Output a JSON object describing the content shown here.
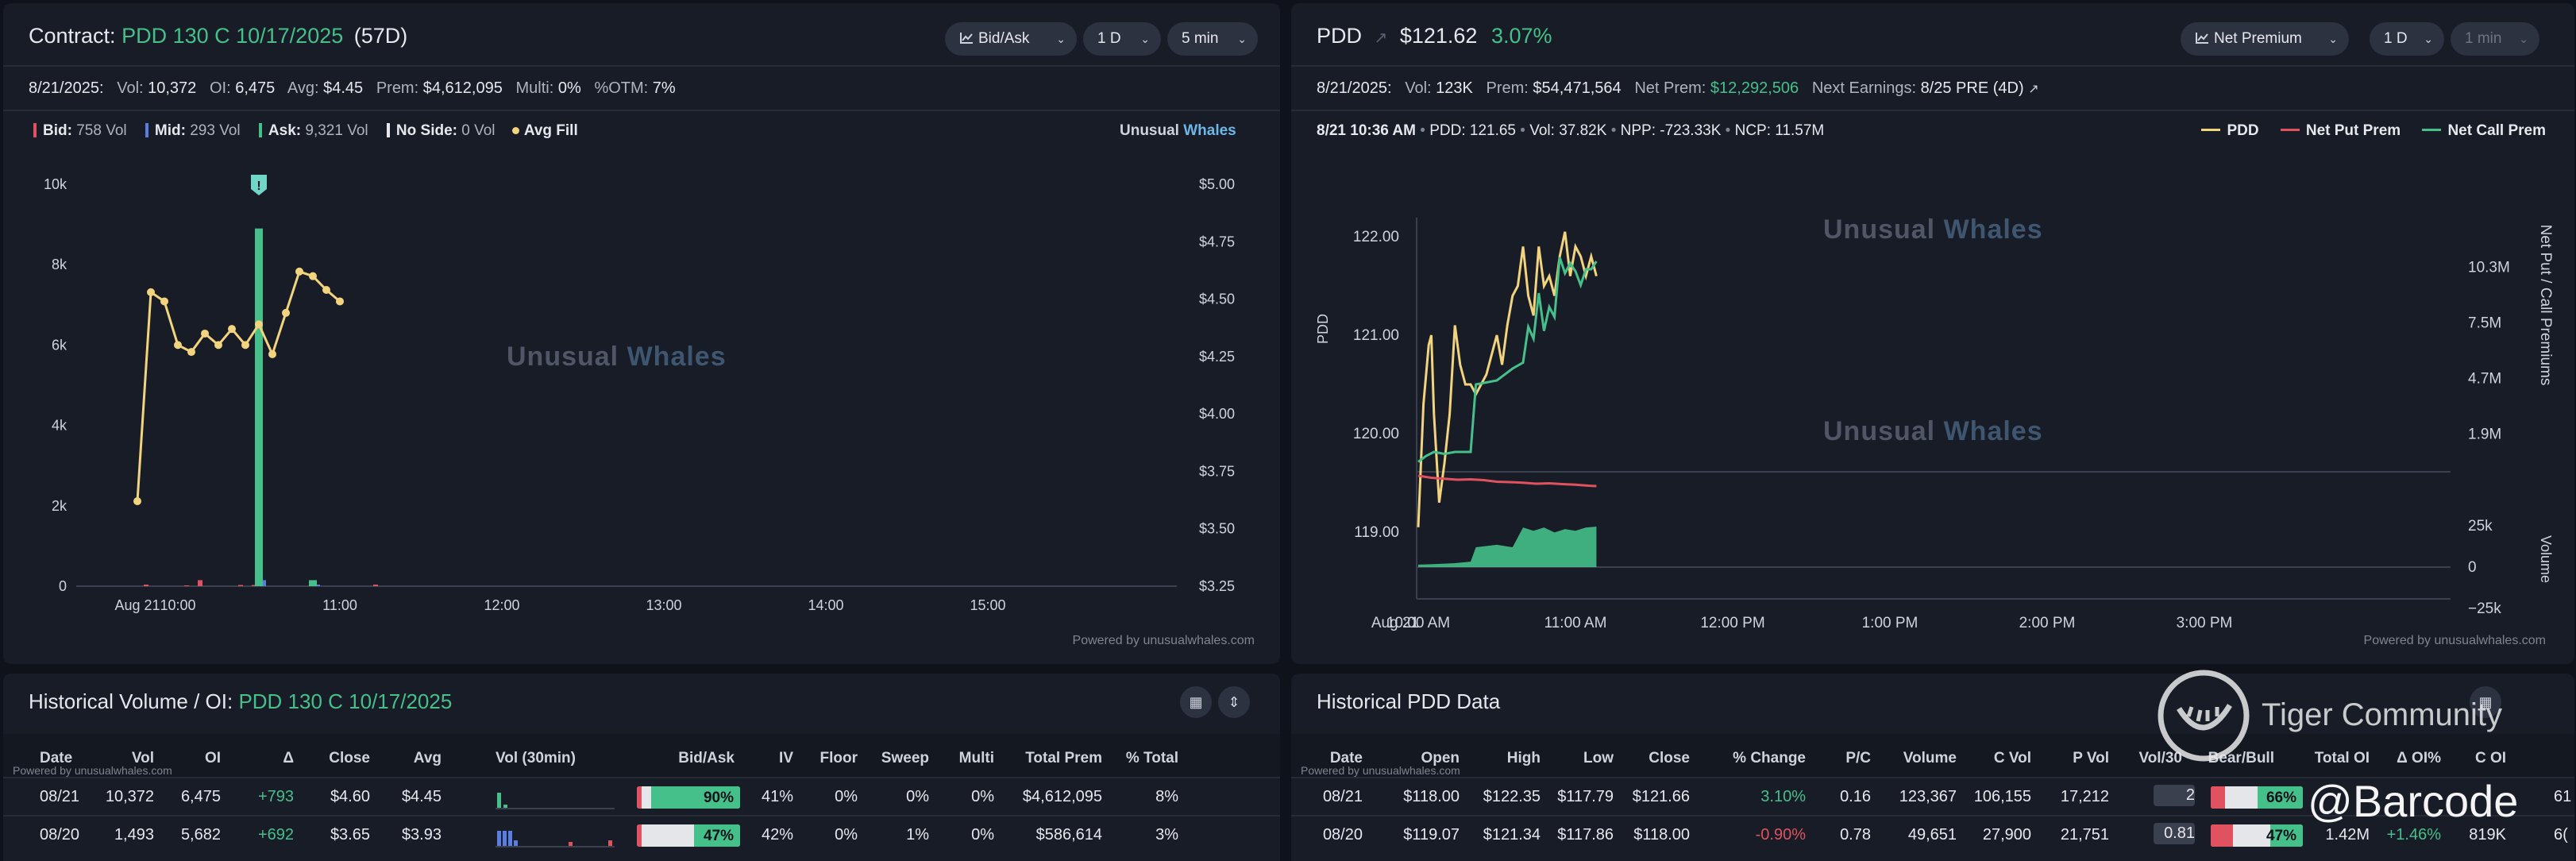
{
  "left_panel": {
    "title_prefix": "Contract:",
    "contract": "PDD 130 C 10/17/2025",
    "dte": "(57D)",
    "buttons": [
      "Bid/Ask",
      "1 D",
      "5 min"
    ],
    "stats": {
      "date": "8/21/2025:",
      "vol_label": "Vol:",
      "vol": "10,372",
      "oi_label": "OI:",
      "oi": "6,475",
      "avg_label": "Avg:",
      "avg": "$4.45",
      "prem_label": "Prem:",
      "prem": "$4,612,095",
      "multi_label": "Multi:",
      "multi": "0%",
      "otm_label": "%OTM:",
      "otm": "7%"
    },
    "legend": {
      "bid": "Bid:",
      "bid_vol": "758 Vol",
      "mid": "Mid:",
      "mid_vol": "293 Vol",
      "ask": "Ask:",
      "ask_vol": "9,321 Vol",
      "noside": "No Side:",
      "noside_vol": "0 Vol",
      "avgfill": "Avg Fill"
    },
    "brand_a": "Unusual",
    "brand_b": "Whales",
    "watermark_a": "Unusual",
    "watermark_b": "Whales",
    "powered": "Powered by unusualwhales.com",
    "alert_glyph": "!",
    "colors": {
      "bid": "#e0525f",
      "mid": "#5b7de0",
      "ask": "#45c08a",
      "avg": "#f2d37e"
    }
  },
  "right_panel": {
    "ticker": "PDD",
    "price": "$121.62",
    "change": "3.07%",
    "buttons": [
      "Net Premium",
      "1 D",
      "1 min"
    ],
    "stats": {
      "date": "8/21/2025:",
      "vol_label": "Vol:",
      "vol": "123K",
      "prem_label": "Prem:",
      "prem": "$54,471,564",
      "netprem_label": "Net Prem:",
      "netprem": "$12,292,506",
      "earn_label": "Next Earnings:",
      "earn": "8/25 PRE (4D)"
    },
    "info": {
      "time": "8/21 10:36 AM",
      "pdd": "PDD: 121.65",
      "vol": "Vol: 37.82K",
      "npp": "NPP: -723.33K",
      "ncp": "NCP: 11.57M"
    },
    "legend": [
      "PDD",
      "Net Put Prem",
      "Net Call Prem"
    ],
    "watermark_a": "Unusual",
    "watermark_b": "Whales",
    "powered": "Powered by unusualwhales.com",
    "colors": {
      "pdd": "#f2d37e",
      "put": "#e0525f",
      "call": "#45c08a"
    }
  },
  "chart_data": [
    {
      "type": "bar",
      "title": "",
      "x_ticks": [
        "Aug 21",
        "10:00",
        "11:00",
        "12:00",
        "13:00",
        "14:00",
        "15:00"
      ],
      "y_left_ticks": [
        "10k",
        "8k",
        "6k",
        "4k",
        "2k",
        "0"
      ],
      "y_right_ticks": [
        "$5.00",
        "$4.75",
        "$4.50",
        "$4.25",
        "$4.00",
        "$3.75",
        "$3.50",
        "$3.25"
      ],
      "ylim_left": [
        0,
        10000
      ],
      "ylim_right": [
        3.25,
        5.0
      ],
      "x_minutes": [
        -15,
        -10,
        -5,
        0,
        5,
        10,
        15,
        20,
        25,
        30,
        35,
        40,
        45,
        50,
        55,
        60,
        65,
        70,
        75,
        80,
        85,
        90
      ],
      "volume_series": [
        {
          "name": "Bid",
          "values": [
            0,
            40,
            0,
            0,
            20,
            150,
            0,
            0,
            30,
            30,
            0,
            0,
            0,
            0,
            0,
            0,
            0,
            0,
            40,
            0,
            0,
            0
          ]
        },
        {
          "name": "Mid",
          "values": [
            0,
            0,
            0,
            0,
            0,
            0,
            0,
            0,
            0,
            150,
            0,
            0,
            0,
            40,
            0,
            0,
            0,
            0,
            0,
            0,
            0,
            0
          ]
        },
        {
          "name": "Ask",
          "values": [
            0,
            0,
            0,
            0,
            0,
            0,
            0,
            0,
            0,
            8900,
            0,
            0,
            0,
            150,
            0,
            0,
            0,
            0,
            0,
            0,
            0,
            0
          ]
        }
      ],
      "avg_fill": {
        "name": "Avg Fill",
        "x_minutes": [
          -15,
          -10,
          -5,
          0,
          5,
          10,
          15,
          20,
          25,
          30,
          35,
          40,
          45,
          50,
          55,
          60
        ],
        "values": [
          3.62,
          4.53,
          4.49,
          4.3,
          4.27,
          4.35,
          4.3,
          4.37,
          4.3,
          4.39,
          4.26,
          4.44,
          4.62,
          4.6,
          4.54,
          4.49
        ]
      }
    },
    {
      "type": "line",
      "title": "",
      "ylabel": "PDD",
      "y2label": "Net Put / Call Premiums",
      "volume_label": "Volume",
      "x_ticks": [
        "Aug 21",
        "10:00 AM",
        "11:00 AM",
        "12:00 PM",
        "1:00 PM",
        "2:00 PM",
        "3:00 PM"
      ],
      "y_ticks": [
        "122.00",
        "121.00",
        "120.00",
        "119.00"
      ],
      "y2_ticks": [
        "10.3M",
        "7.5M",
        "4.7M",
        "1.9M"
      ],
      "vol_ticks": [
        "25k",
        "0",
        "−25k"
      ],
      "ylim": [
        118.6,
        122.3
      ],
      "series": [
        {
          "name": "PDD",
          "points": [
            [
              0,
              119.05
            ],
            [
              2,
              120.3
            ],
            [
              4,
              120.9
            ],
            [
              5,
              121.0
            ],
            [
              6,
              120.2
            ],
            [
              8,
              119.3
            ],
            [
              10,
              119.7
            ],
            [
              12,
              120.2
            ],
            [
              14,
              121.1
            ],
            [
              16,
              120.7
            ],
            [
              18,
              120.5
            ],
            [
              20,
              120.5
            ],
            [
              22,
              120.4
            ],
            [
              24,
              120.5
            ],
            [
              26,
              120.6
            ],
            [
              28,
              120.8
            ],
            [
              30,
              121.0
            ],
            [
              32,
              120.7
            ],
            [
              34,
              121.1
            ],
            [
              36,
              121.4
            ],
            [
              38,
              121.5
            ],
            [
              40,
              121.9
            ],
            [
              42,
              121.4
            ],
            [
              44,
              121.2
            ],
            [
              46,
              121.9
            ],
            [
              48,
              121.5
            ],
            [
              50,
              121.6
            ],
            [
              52,
              121.4
            ],
            [
              54,
              121.8
            ],
            [
              56,
              122.05
            ],
            [
              58,
              121.6
            ],
            [
              60,
              121.9
            ],
            [
              62,
              121.8
            ],
            [
              64,
              121.6
            ],
            [
              66,
              121.8
            ],
            [
              68,
              121.6
            ]
          ]
        },
        {
          "name": "Net Put Prem",
          "points": [
            [
              0,
              -0.2
            ],
            [
              5,
              -0.3
            ],
            [
              10,
              -0.35
            ],
            [
              15,
              -0.4
            ],
            [
              20,
              -0.38
            ],
            [
              25,
              -0.42
            ],
            [
              30,
              -0.5
            ],
            [
              35,
              -0.52
            ],
            [
              40,
              -0.55
            ],
            [
              45,
              -0.6
            ],
            [
              50,
              -0.58
            ],
            [
              55,
              -0.62
            ],
            [
              60,
              -0.65
            ],
            [
              65,
              -0.7
            ],
            [
              68,
              -0.72
            ]
          ]
        },
        {
          "name": "Net Call Prem",
          "points": [
            [
              0,
              0.5
            ],
            [
              3,
              0.8
            ],
            [
              6,
              1.0
            ],
            [
              10,
              0.9
            ],
            [
              14,
              1.0
            ],
            [
              20,
              1.0
            ],
            [
              22,
              4.4
            ],
            [
              30,
              4.6
            ],
            [
              36,
              5.2
            ],
            [
              40,
              5.5
            ],
            [
              42,
              7.3
            ],
            [
              44,
              6.7
            ],
            [
              46,
              9.0
            ],
            [
              48,
              7.1
            ],
            [
              50,
              8.3
            ],
            [
              52,
              7.8
            ],
            [
              54,
              10.8
            ],
            [
              56,
              10.0
            ],
            [
              58,
              10.5
            ],
            [
              60,
              10.1
            ],
            [
              62,
              9.4
            ],
            [
              64,
              10.2
            ],
            [
              66,
              10.2
            ],
            [
              68,
              10.6
            ]
          ]
        }
      ],
      "volume_area": {
        "points": [
          [
            0,
            1500
          ],
          [
            6,
            1800
          ],
          [
            10,
            2100
          ],
          [
            14,
            2400
          ],
          [
            20,
            3300
          ],
          [
            22,
            12000
          ],
          [
            30,
            13500
          ],
          [
            36,
            12000
          ],
          [
            40,
            24000
          ],
          [
            44,
            22000
          ],
          [
            48,
            24000
          ],
          [
            52,
            21000
          ],
          [
            56,
            23000
          ],
          [
            60,
            22000
          ],
          [
            64,
            24000
          ],
          [
            68,
            24500
          ]
        ]
      }
    },
    {
      "type": "table",
      "title": "Historical Volume / OI: PDD 130 C 10/17/2025",
      "columns": [
        "Date",
        "Vol",
        "OI",
        "Δ",
        "Close",
        "Avg",
        "Vol (30min)",
        "Bid/Ask",
        "IV",
        "Floor",
        "Sweep",
        "Multi",
        "Total Prem",
        "% Total"
      ],
      "rows": [
        [
          "08/21",
          "10,372",
          "6,475",
          "+793",
          "$4.60",
          "$4.45",
          "",
          "90%",
          "41%",
          "0%",
          "0%",
          "0%",
          "$4,612,095",
          "8%"
        ],
        [
          "08/20",
          "1,493",
          "5,682",
          "+692",
          "$3.65",
          "$3.93",
          "",
          "47%",
          "42%",
          "0%",
          "1%",
          "0%",
          "$586,614",
          "3%"
        ]
      ]
    },
    {
      "type": "table",
      "title": "Historical PDD Data",
      "columns": [
        "Date",
        "Open",
        "High",
        "Low",
        "Close",
        "% Change",
        "P/C",
        "Volume",
        "C Vol",
        "P Vol",
        "Vol/30",
        "Bear/Bull",
        "Total OI",
        "Δ OI%",
        "C OI"
      ],
      "rows": [
        [
          "08/21",
          "$118.00",
          "$122.35",
          "$117.79",
          "$121.66",
          "3.10%",
          "0.16",
          "123,367",
          "106,155",
          "17,212",
          "2",
          "66%",
          "",
          "",
          ""
        ],
        [
          "08/20",
          "$119.07",
          "$121.34",
          "$117.86",
          "$118.00",
          "-0.90%",
          "0.78",
          "49,651",
          "27,900",
          "21,751",
          "0.81",
          "47%",
          "1.42M",
          "+1.46%",
          "819K"
        ]
      ]
    }
  ],
  "bottom_left": {
    "title_prefix": "Historical Volume / OI:",
    "title_contract": "PDD 130 C 10/17/2025",
    "powered": "Powered by unusualwhales.com"
  },
  "bottom_right": {
    "title": "Historical PDD Data",
    "powered": "Powered by unusualwhales.com",
    "overflow_cells": [
      "61",
      "6("
    ]
  },
  "overlay": {
    "community": "Tiger Community",
    "handle": "@Barcode"
  }
}
